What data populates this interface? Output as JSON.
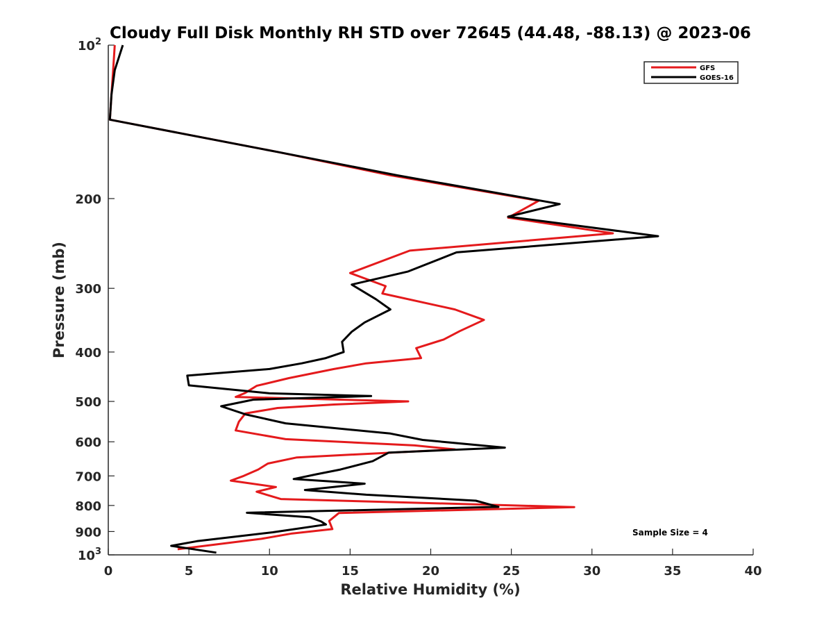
{
  "chart_data": {
    "type": "line",
    "title": "Cloudy Full Disk Monthly RH STD over 72645 (44.48, -88.13) @ 2023-06",
    "xlabel": "Relative Humidity (%)",
    "ylabel": "Pressure (mb)",
    "xlim": [
      0,
      40
    ],
    "ylim": [
      100,
      1000
    ],
    "y_scale": "log",
    "y_reversed": true,
    "x_ticks": [
      "0",
      "5",
      "10",
      "15",
      "20",
      "25",
      "30",
      "35",
      "40"
    ],
    "y_ticks": [
      {
        "value": 100,
        "label": "10",
        "sup": "2"
      },
      {
        "value": 200,
        "label": "200",
        "sup": ""
      },
      {
        "value": 300,
        "label": "300",
        "sup": ""
      },
      {
        "value": 400,
        "label": "400",
        "sup": ""
      },
      {
        "value": 500,
        "label": "500",
        "sup": ""
      },
      {
        "value": 600,
        "label": "600",
        "sup": ""
      },
      {
        "value": 700,
        "label": "700",
        "sup": ""
      },
      {
        "value": 800,
        "label": "800",
        "sup": ""
      },
      {
        "value": 900,
        "label": "900",
        "sup": ""
      },
      {
        "value": 1000,
        "label": "10",
        "sup": "3"
      }
    ],
    "grid": false,
    "legend": {
      "placement": "top-right",
      "entries": [
        "GFS",
        "GOES-16"
      ]
    },
    "annotation": "Sample Size = 4",
    "series": [
      {
        "name": "GFS",
        "color": "#e41a1c",
        "x": [
          0.4,
          0.3,
          0.2,
          0.1,
          10.5,
          17.5,
          26.7,
          24.8,
          31.3,
          18.7,
          15.0,
          17.2,
          17.0,
          21.5,
          23.3,
          21.8,
          20.8,
          19.1,
          19.4,
          16.0,
          14.0,
          11.2,
          9.2,
          8.5,
          7.9,
          18.6,
          14.0,
          10.5,
          8.5,
          8.1,
          7.9,
          11.0,
          19.0,
          21.5,
          11.7,
          9.9,
          9.3,
          8.4,
          7.6,
          10.4,
          9.2,
          10.7,
          28.9,
          14.3,
          13.7,
          13.9,
          11.4,
          9.5,
          4.3
        ],
        "y": [
          100,
          112,
          125,
          140,
          162,
          180,
          202,
          218,
          234,
          253,
          280,
          297,
          307,
          330,
          346,
          364,
          378,
          393,
          411,
          421,
          432,
          450,
          466,
          481,
          490,
          500,
          507,
          515,
          528,
          548,
          570,
          593,
          610,
          621,
          644,
          662,
          680,
          700,
          715,
          736,
          752,
          777,
          806,
          828,
          858,
          890,
          908,
          930,
          975
        ]
      },
      {
        "name": "GOES-16",
        "color": "#000000",
        "x": [
          0.9,
          0.4,
          0.2,
          0.1,
          10.5,
          17.9,
          28.0,
          24.8,
          34.1,
          21.6,
          18.6,
          15.1,
          16.6,
          17.5,
          15.9,
          15.1,
          14.5,
          14.6,
          13.5,
          12.0,
          10.0,
          4.9,
          5.0,
          10.0,
          16.3,
          9.0,
          7.0,
          8.5,
          11.0,
          17.5,
          19.5,
          24.6,
          17.4,
          16.4,
          14.4,
          12.9,
          11.5,
          15.9,
          12.2,
          16.0,
          22.8,
          24.2,
          8.6,
          12.5,
          13.2,
          13.5,
          10.2,
          5.5,
          3.9,
          6.7
        ],
        "y": [
          100,
          112,
          125,
          140,
          162,
          180,
          205,
          217,
          237,
          255,
          278,
          295,
          315,
          330,
          350,
          365,
          382,
          400,
          411,
          421,
          432,
          445,
          465,
          482,
          488,
          496,
          511,
          530,
          552,
          578,
          595,
          616,
          630,
          655,
          680,
          695,
          710,
          725,
          746,
          762,
          783,
          805,
          827,
          844,
          860,
          872,
          903,
          940,
          960,
          990
        ]
      }
    ]
  }
}
